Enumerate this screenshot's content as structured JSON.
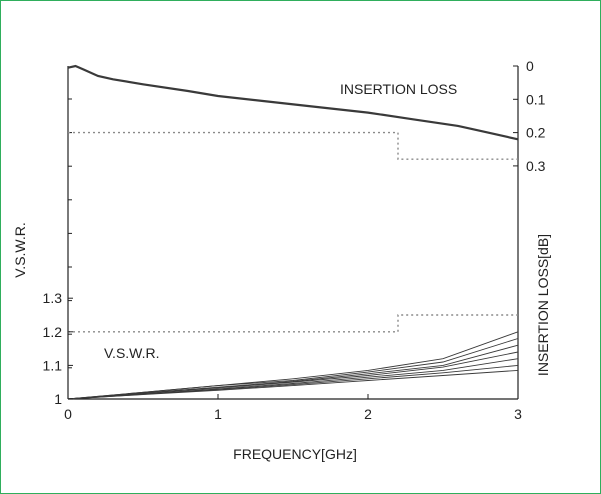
{
  "chart_data": {
    "type": "line",
    "title": "",
    "xlabel": "FREQUENCY[GHz]",
    "ylabel_left": "V.S.W.R.",
    "ylabel_right": "INSERTION LOSS[dB]",
    "xlim": [
      0,
      3
    ],
    "ylim_left": [
      1,
      1.3
    ],
    "ylim_right": [
      0,
      0.3
    ],
    "right_axis_inverted": true,
    "grid": false,
    "x_ticks": [
      "0",
      "1",
      "2",
      "3"
    ],
    "y_left_ticks": [
      "1",
      "1.1",
      "1.2",
      "1.3"
    ],
    "y_right_ticks": [
      "0",
      "0.1",
      "0.2",
      "0.3"
    ],
    "annotations": [
      "INSERTION LOSS",
      "V.S.W.R."
    ],
    "series": [
      {
        "axis": "right",
        "style": "solid",
        "x": [
          0,
          0.05,
          0.1,
          0.2,
          0.3,
          0.5,
          0.8,
          1.0,
          1.3,
          1.6,
          2.0,
          2.3,
          2.6,
          2.8,
          3.0
        ],
        "values": [
          0.005,
          0.0,
          0.01,
          0.03,
          0.04,
          0.055,
          0.075,
          0.09,
          0.105,
          0.12,
          0.14,
          0.16,
          0.18,
          0.2,
          0.22
        ]
      },
      {
        "axis": "right",
        "style": "dotted",
        "x": [
          0,
          2.2,
          2.2,
          3.0
        ],
        "values": [
          0.2,
          0.2,
          0.28,
          0.28
        ]
      },
      {
        "axis": "left",
        "style": "dotted",
        "x": [
          0,
          2.2,
          2.2,
          3.0
        ],
        "values": [
          1.2,
          1.2,
          1.25,
          1.25
        ]
      },
      {
        "axis": "left",
        "style": "solid",
        "x": [
          0,
          0.5,
          1.0,
          1.5,
          2.0,
          2.5,
          3.0
        ],
        "values": [
          1.0,
          1.02,
          1.04,
          1.06,
          1.085,
          1.12,
          1.2
        ]
      },
      {
        "axis": "left",
        "style": "solid",
        "x": [
          0,
          0.5,
          1.0,
          1.5,
          2.0,
          2.5,
          3.0
        ],
        "values": [
          1.0,
          1.02,
          1.04,
          1.055,
          1.08,
          1.11,
          1.18
        ]
      },
      {
        "axis": "left",
        "style": "solid",
        "x": [
          0,
          0.5,
          1.0,
          1.5,
          2.0,
          2.5,
          3.0
        ],
        "values": [
          1.0,
          1.018,
          1.035,
          1.052,
          1.075,
          1.1,
          1.16
        ]
      },
      {
        "axis": "left",
        "style": "solid",
        "x": [
          0,
          0.5,
          1.0,
          1.5,
          2.0,
          2.5,
          3.0
        ],
        "values": [
          1.0,
          1.017,
          1.033,
          1.05,
          1.07,
          1.095,
          1.14
        ]
      },
      {
        "axis": "left",
        "style": "solid",
        "x": [
          0,
          0.5,
          1.0,
          1.5,
          2.0,
          2.5,
          3.0
        ],
        "values": [
          1.0,
          1.015,
          1.03,
          1.046,
          1.065,
          1.085,
          1.12
        ]
      },
      {
        "axis": "left",
        "style": "solid",
        "x": [
          0,
          0.5,
          1.0,
          1.5,
          2.0,
          2.5,
          3.0
        ],
        "values": [
          1.0,
          1.014,
          1.028,
          1.043,
          1.06,
          1.078,
          1.1
        ]
      },
      {
        "axis": "left",
        "style": "solid",
        "x": [
          0,
          0.5,
          1.0,
          1.5,
          2.0,
          2.5,
          3.0
        ],
        "values": [
          1.0,
          1.013,
          1.026,
          1.04,
          1.055,
          1.07,
          1.085
        ]
      }
    ],
    "colors": {
      "curve": "#3a3a3a",
      "spec": "#8a8a8a",
      "axis": "#222222",
      "frame": "#2fae5c"
    }
  }
}
